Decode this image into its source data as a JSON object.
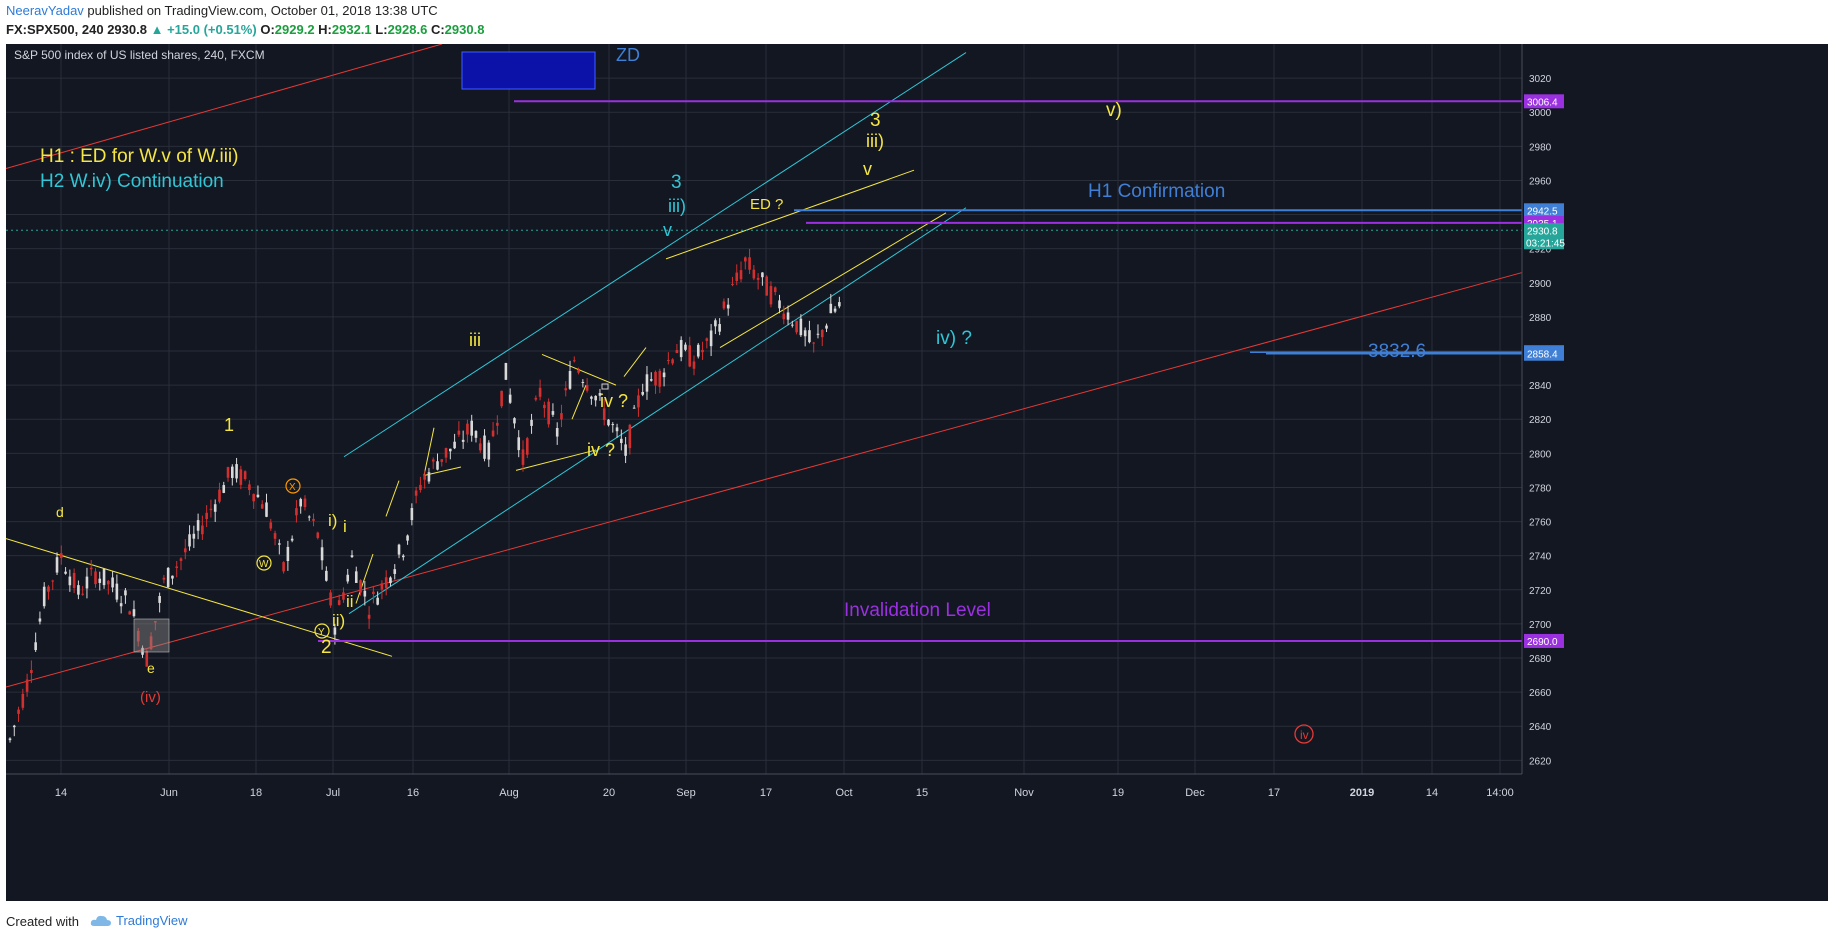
{
  "header": {
    "author": "NeeravYadav",
    "published": " published on TradingView.com, October 01, 2018 13:38 UTC",
    "symbol": "FX:SPX500, 240",
    "last": "2930.8",
    "change": "+15.0 (+0.51%)",
    "o_label": "O:",
    "o_value": "2929.2",
    "h_label": "H:",
    "h_value": "2932.1",
    "l_label": "L:",
    "l_value": "2928.6",
    "c_label": "C:",
    "c_value": "2930.8"
  },
  "footer": {
    "created_with": "Created with",
    "brand": "TradingView",
    "brand_icon": "tradingview-cloud-logo"
  },
  "colors": {
    "background": "#131722",
    "grid": "#2a2e39",
    "axis_text": "#d1d4dc",
    "candle_up": "#d9d9d9",
    "candle_down": "#d32f2f",
    "yellow": "#f5e642",
    "cyan": "#2fc7d6",
    "red": "#e53935",
    "purple": "#9b30e0",
    "blue": "#3f7fd6",
    "zd_box": "#0c12a8",
    "last_price": "#26a69a"
  },
  "chart_data": {
    "type": "candlestick",
    "title": "S&P 500 index of US listed shares, 240, FXCM",
    "symbol": "FX:SPX500",
    "interval": "240",
    "ylim": [
      2612,
      3040
    ],
    "y_ticks": [
      2620,
      2640,
      2660,
      2680,
      2700,
      2720,
      2740,
      2760,
      2780,
      2800,
      2820,
      2840,
      2860,
      2880,
      2900,
      2920,
      2940,
      2960,
      2980,
      3000,
      3020
    ],
    "x_ticks": [
      "14",
      "Jun",
      "18",
      "Jul",
      "16",
      "Aug",
      "20",
      "Sep",
      "17",
      "Oct",
      "15",
      "Nov",
      "19",
      "Dec",
      "17",
      "2019",
      "14",
      "14:00"
    ],
    "price_series": {
      "day_offsets": [
        0,
        2,
        4,
        6,
        8,
        10,
        12,
        14,
        16,
        18,
        20,
        22,
        24,
        26,
        28,
        30,
        32,
        34,
        36,
        38,
        40,
        42,
        44,
        46,
        48,
        50,
        52,
        54,
        56,
        58,
        60,
        62,
        64,
        66,
        68,
        70,
        72,
        74,
        76,
        78,
        80,
        82,
        84,
        86,
        88,
        90,
        92,
        94,
        96,
        98,
        100,
        102,
        104,
        106,
        108,
        110,
        112,
        114,
        116,
        118,
        120,
        122,
        124,
        126,
        128,
        130,
        132,
        134,
        136,
        138,
        140
      ],
      "close": [
        2632,
        2665,
        2715,
        2740,
        2718,
        2730,
        2722,
        2712,
        2680,
        2724,
        2738,
        2754,
        2772,
        2790,
        2782,
        2768,
        2732,
        2772,
        2752,
        2700,
        2738,
        2710,
        2726,
        2745,
        2782,
        2796,
        2804,
        2815,
        2800,
        2846,
        2796,
        2836,
        2812,
        2855,
        2838,
        2820,
        2800,
        2840,
        2846,
        2862,
        2855,
        2866,
        2890,
        2912,
        2900,
        2888,
        2876,
        2862,
        2882,
        2891,
        2868,
        2889,
        2906,
        2916,
        2939,
        2930,
        2910,
        2935,
        2920,
        2931,
        2930,
        2930,
        2930,
        2930,
        2930,
        2930,
        2930,
        2930,
        2930,
        2930,
        2930
      ]
    },
    "horizontal_levels": [
      {
        "price": 3006.4,
        "color": "purple",
        "label": "3006.4"
      },
      {
        "price": 2942.5,
        "color": "blue",
        "label": "2942.5"
      },
      {
        "price": 2935.1,
        "color": "purple",
        "label": "2935.1"
      },
      {
        "price": 2930.8,
        "color": "last_price",
        "label": "2930.8"
      },
      {
        "price": 2859.3,
        "color": "blue",
        "label": "2859.3"
      },
      {
        "price": 2858.4,
        "color": "blue",
        "label": "2858.4"
      },
      {
        "price": 2690.0,
        "color": "purple",
        "label": "2690.0"
      }
    ],
    "countdown": "03:21:45",
    "annotations": {
      "hypothesis_1": "H1 : ED for W.v of W.iii)",
      "hypothesis_2": "H2 W.iv) Continuation",
      "zd": "ZD",
      "h1_confirmation": "H1 Confirmation",
      "invalidation": "Invalidation Level",
      "overlap": "3832.6",
      "wave_labels": {
        "d": "d",
        "e": "e",
        "iv_paren": "(iv)",
        "one": "1",
        "x": "X",
        "w": "W",
        "y": "Y",
        "i_paren": "i)",
        "i": "i",
        "ii": "ii",
        "ii_paren": "ii)",
        "two": "2",
        "iii": "iii",
        "iv_q1": "iv ?",
        "iv_q2": "iv ?",
        "v1": "v",
        "three_cyan": "3",
        "iii_paren_cyan": "iii)",
        "ed_q": "ED ?",
        "three_yellow": "3",
        "iii_paren_yellow": "iii)",
        "v2": "v",
        "v_paren": "v)",
        "iv_paren_q": "iv) ?",
        "iv_circle": "iv"
      }
    }
  }
}
